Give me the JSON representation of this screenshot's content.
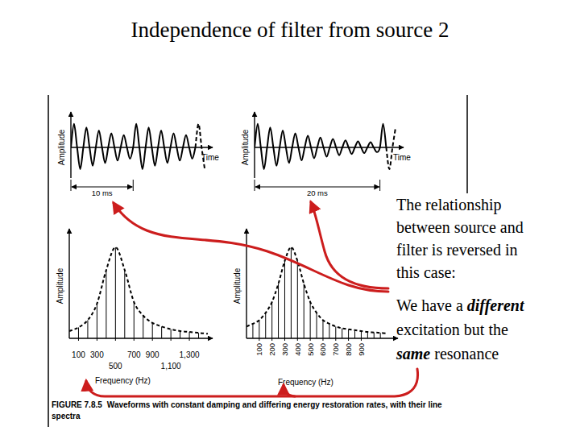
{
  "title": "Independence of filter from source 2",
  "paragraphs": [
    [
      {
        "text": "The relationship between source and filter is reversed in this case:"
      }
    ],
    [
      {
        "text": "We have a "
      },
      {
        "text": "different",
        "emphasis": true
      },
      {
        "text": " excitation but the "
      },
      {
        "text": "same",
        "emphasis": true
      },
      {
        "text": " resonance"
      }
    ]
  ],
  "caption": {
    "label": "FIGURE 7.8.5",
    "text": "Waveforms with constant damping and differing energy restoration rates, with their line spectra"
  },
  "chart_data": [
    {
      "type": "line",
      "xlabel": "Time",
      "ylabel": "Amplitude",
      "xlim": [
        0,
        22
      ],
      "ylim": [
        -1.3,
        1.3
      ],
      "tick_labels": false,
      "x": [
        0,
        0.5,
        1,
        1.5,
        2,
        2.5,
        3,
        3.5,
        4,
        4.5,
        5,
        5.5,
        6,
        6.5,
        7,
        7.5,
        8,
        8.5,
        9,
        9.5,
        10,
        10.5,
        11,
        11.5,
        12,
        12.5,
        13,
        13.5,
        14,
        14.5,
        15,
        15.5,
        16,
        16.5,
        17,
        17.5,
        18,
        18.5,
        19,
        19.5,
        20,
        20.5,
        21,
        21.5
      ],
      "series": [
        {
          "values": [
            0,
            1,
            0,
            -0.92,
            0,
            0.85,
            0,
            -0.78,
            0,
            0.72,
            0,
            -0.66,
            0,
            0.6,
            0,
            -0.56,
            0,
            0.52,
            0,
            -0.48,
            0,
            1,
            0,
            -0.92,
            0,
            0.85,
            0,
            -0.78,
            0,
            0.72,
            0,
            -0.66,
            0,
            0.6,
            0,
            -0.56,
            0,
            0.52,
            0,
            -0.48,
            0,
            null,
            null,
            null
          ]
        },
        {
          "line_style": "dashed",
          "values": [
            null,
            null,
            null,
            null,
            null,
            null,
            null,
            null,
            null,
            null,
            null,
            null,
            null,
            null,
            null,
            null,
            null,
            null,
            null,
            null,
            null,
            null,
            null,
            null,
            null,
            null,
            null,
            null,
            null,
            null,
            null,
            null,
            null,
            null,
            null,
            null,
            null,
            null,
            null,
            null,
            0,
            1,
            0,
            -0.92
          ]
        }
      ],
      "annotations": [
        {
          "x0": 0,
          "x1": 10,
          "label": "10 ms"
        }
      ]
    },
    {
      "type": "line",
      "xlabel": "Time",
      "ylabel": "Amplitude",
      "xlim": [
        0,
        23
      ],
      "ylim": [
        -1.3,
        1.3
      ],
      "tick_labels": false,
      "x": [
        0,
        0.5,
        1,
        1.5,
        2,
        2.5,
        3,
        3.5,
        4,
        4.5,
        5,
        5.5,
        6,
        6.5,
        7,
        7.5,
        8,
        8.5,
        9,
        9.5,
        10,
        10.5,
        11,
        11.5,
        12,
        12.5,
        13,
        13.5,
        14,
        14.5,
        15,
        15.5,
        16,
        16.5,
        17,
        17.5,
        18,
        18.5,
        19,
        19.5,
        20,
        20.5,
        21,
        21.5,
        22,
        22.5
      ],
      "series": [
        {
          "values": [
            0,
            1,
            0,
            -0.92,
            0,
            0.85,
            0,
            -0.78,
            0,
            0.72,
            0,
            -0.66,
            0,
            0.6,
            0,
            -0.55,
            0,
            0.5,
            0,
            -0.46,
            0,
            0.42,
            0,
            -0.39,
            0,
            0.36,
            0,
            -0.33,
            0,
            0.3,
            0,
            -0.28,
            0,
            0.26,
            0,
            -0.24,
            0,
            0.22,
            0,
            -0.2,
            0,
            1,
            0,
            null,
            null,
            null
          ]
        },
        {
          "line_style": "dashed",
          "values": [
            null,
            null,
            null,
            null,
            null,
            null,
            null,
            null,
            null,
            null,
            null,
            null,
            null,
            null,
            null,
            null,
            null,
            null,
            null,
            null,
            null,
            null,
            null,
            null,
            null,
            null,
            null,
            null,
            null,
            null,
            null,
            null,
            null,
            null,
            null,
            null,
            null,
            null,
            null,
            null,
            null,
            null,
            0,
            -0.92,
            0,
            0.85
          ]
        }
      ],
      "annotations": [
        {
          "x0": 0,
          "x1": 20,
          "label": "20 ms"
        }
      ]
    },
    {
      "type": "bar",
      "xlabel": "Frequency (Hz)",
      "ylabel": "Amplitude",
      "xlim": [
        0,
        1500
      ],
      "ylim": [
        0,
        1.15
      ],
      "tick_labels": "x",
      "xticks": [
        100,
        300,
        500,
        700,
        900,
        {
          "value": 1100,
          "label": "1,100"
        },
        {
          "value": 1300,
          "label": "1,300"
        }
      ],
      "x": [
        0,
        100,
        200,
        300,
        400,
        500,
        600,
        700,
        800,
        900,
        1000,
        1100,
        1200,
        1300,
        1400,
        1500
      ],
      "series": [
        {
          "type": "bar",
          "values": [
            null,
            0.12,
            0.2,
            0.38,
            0.75,
            1.0,
            0.75,
            0.4,
            0.25,
            0.17,
            0.13,
            0.1,
            0.08,
            0.07,
            0.06,
            null
          ]
        },
        {
          "type": "line",
          "line_style": "dashed",
          "values": [
            0.08,
            0.12,
            0.2,
            0.38,
            0.75,
            1.0,
            0.75,
            0.4,
            0.25,
            0.17,
            0.13,
            0.1,
            0.08,
            0.07,
            0.06,
            0.05
          ]
        }
      ]
    },
    {
      "type": "bar",
      "xlabel": "Frequency (Hz)",
      "ylabel": "Amplitude",
      "xlim": [
        0,
        1150
      ],
      "ylim": [
        0,
        1.15
      ],
      "tick_labels": "x",
      "xticks": [
        100,
        200,
        300,
        400,
        500,
        600,
        700,
        800,
        900
      ],
      "x": [
        0,
        50,
        100,
        150,
        200,
        250,
        300,
        350,
        400,
        450,
        500,
        550,
        600,
        650,
        700,
        750,
        800,
        850,
        900,
        950,
        1000,
        1050,
        1100
      ],
      "series": [
        {
          "type": "bar",
          "values": [
            null,
            0.16,
            0.2,
            0.28,
            0.4,
            0.6,
            0.85,
            1,
            0.85,
            0.6,
            0.4,
            0.28,
            0.2,
            0.16,
            0.13,
            0.11,
            0.1,
            0.09,
            0.08,
            0.07,
            0.065,
            0.06,
            null
          ]
        },
        {
          "type": "line",
          "line_style": "dashed",
          "values": [
            0.13,
            0.16,
            0.2,
            0.28,
            0.4,
            0.6,
            0.85,
            1,
            0.85,
            0.6,
            0.4,
            0.28,
            0.2,
            0.16,
            0.13,
            0.11,
            0.1,
            0.09,
            0.08,
            0.07,
            0.065,
            0.06,
            0.055
          ]
        }
      ]
    }
  ]
}
